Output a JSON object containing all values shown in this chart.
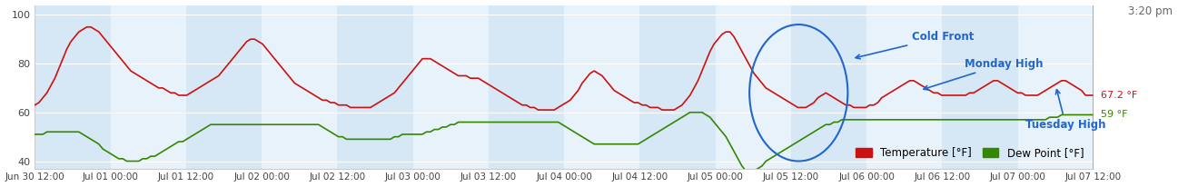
{
  "title": "3:20 pm",
  "x_tick_labels": [
    "Jun 30 12:00",
    "Jul 01 00:00",
    "Jul 01 12:00",
    "Jul 02 00:00",
    "Jul 02 12:00",
    "Jul 03 00:00",
    "Jul 03 12:00",
    "Jul 04 00:00",
    "Jul 04 12:00",
    "Jul 05 00:00",
    "Jul 05 12:00",
    "Jul 06 00:00",
    "Jul 06 12:00",
    "Jul 07 00:00",
    "Jul 07 12:00"
  ],
  "ylim": [
    37,
    104
  ],
  "yticks": [
    40,
    60,
    80,
    100
  ],
  "bg_color": "#ffffff",
  "band_dark": "#d6e8f5",
  "band_light": "#e8f2fa",
  "grid_color": "#ffffff",
  "temp_color": "#cc1111",
  "dew_color": "#338800",
  "annotation_color": "#2266cc",
  "current_line_color": "#cc8833",
  "label_67": "67.2 °F",
  "label_59": "59 °F",
  "annotation_cold_front": "Cold Front",
  "annotation_monday_high": "Monday High",
  "annotation_tuesday_high": "Tuesday High",
  "temp_data": [
    63,
    64,
    66,
    68,
    71,
    74,
    78,
    82,
    86,
    89,
    91,
    93,
    94,
    95,
    95,
    94,
    93,
    91,
    89,
    87,
    85,
    83,
    81,
    79,
    77,
    76,
    75,
    74,
    73,
    72,
    71,
    70,
    70,
    69,
    68,
    68,
    67,
    67,
    67,
    68,
    69,
    70,
    71,
    72,
    73,
    74,
    75,
    77,
    79,
    81,
    83,
    85,
    87,
    89,
    90,
    90,
    89,
    88,
    86,
    84,
    82,
    80,
    78,
    76,
    74,
    72,
    71,
    70,
    69,
    68,
    67,
    66,
    65,
    65,
    64,
    64,
    63,
    63,
    63,
    62,
    62,
    62,
    62,
    62,
    62,
    63,
    64,
    65,
    66,
    67,
    68,
    70,
    72,
    74,
    76,
    78,
    80,
    82,
    82,
    82,
    81,
    80,
    79,
    78,
    77,
    76,
    75,
    75,
    75,
    74,
    74,
    74,
    73,
    72,
    71,
    70,
    69,
    68,
    67,
    66,
    65,
    64,
    63,
    63,
    62,
    62,
    61,
    61,
    61,
    61,
    61,
    62,
    63,
    64,
    65,
    67,
    69,
    72,
    74,
    76,
    77,
    76,
    75,
    73,
    71,
    69,
    68,
    67,
    66,
    65,
    64,
    64,
    63,
    63,
    62,
    62,
    62,
    61,
    61,
    61,
    61,
    62,
    63,
    65,
    67,
    70,
    73,
    77,
    81,
    85,
    88,
    90,
    92,
    93,
    93,
    91,
    88,
    85,
    82,
    79,
    76,
    74,
    72,
    70,
    69,
    68,
    67,
    66,
    65,
    64,
    63,
    62,
    62,
    62,
    63,
    64,
    66,
    67,
    68,
    67,
    66,
    65,
    64,
    63,
    63,
    62,
    62,
    62,
    62,
    63,
    63,
    64,
    66,
    67,
    68,
    69,
    70,
    71,
    72,
    73,
    73,
    72,
    71,
    70,
    69,
    68,
    68,
    67,
    67,
    67,
    67,
    67,
    67,
    67,
    68,
    68,
    69,
    70,
    71,
    72,
    73,
    73,
    72,
    71,
    70,
    69,
    68,
    68,
    67,
    67,
    67,
    67,
    68,
    69,
    70,
    71,
    72,
    73,
    73,
    72,
    71,
    70,
    69,
    67,
    67,
    67
  ],
  "dew_data": [
    51,
    51,
    51,
    52,
    52,
    52,
    52,
    52,
    52,
    52,
    52,
    52,
    51,
    50,
    49,
    48,
    47,
    45,
    44,
    43,
    42,
    41,
    41,
    40,
    40,
    40,
    40,
    41,
    41,
    42,
    42,
    43,
    44,
    45,
    46,
    47,
    48,
    48,
    49,
    50,
    51,
    52,
    53,
    54,
    55,
    55,
    55,
    55,
    55,
    55,
    55,
    55,
    55,
    55,
    55,
    55,
    55,
    55,
    55,
    55,
    55,
    55,
    55,
    55,
    55,
    55,
    55,
    55,
    55,
    55,
    55,
    55,
    54,
    53,
    52,
    51,
    50,
    50,
    49,
    49,
    49,
    49,
    49,
    49,
    49,
    49,
    49,
    49,
    49,
    49,
    50,
    50,
    51,
    51,
    51,
    51,
    51,
    51,
    52,
    52,
    53,
    53,
    54,
    54,
    55,
    55,
    56,
    56,
    56,
    56,
    56,
    56,
    56,
    56,
    56,
    56,
    56,
    56,
    56,
    56,
    56,
    56,
    56,
    56,
    56,
    56,
    56,
    56,
    56,
    56,
    56,
    56,
    55,
    54,
    53,
    52,
    51,
    50,
    49,
    48,
    47,
    47,
    47,
    47,
    47,
    47,
    47,
    47,
    47,
    47,
    47,
    47,
    48,
    49,
    50,
    51,
    52,
    53,
    54,
    55,
    56,
    57,
    58,
    59,
    60,
    60,
    60,
    60,
    59,
    58,
    56,
    54,
    52,
    50,
    47,
    44,
    41,
    38,
    36,
    35,
    36,
    37,
    38,
    40,
    41,
    42,
    43,
    44,
    45,
    46,
    47,
    48,
    49,
    50,
    51,
    52,
    53,
    54,
    55,
    55,
    56,
    56,
    57,
    57,
    57,
    57,
    57,
    57,
    57,
    57,
    57,
    57,
    57,
    57,
    57,
    57,
    57,
    57,
    57,
    57,
    57,
    57,
    57,
    57,
    57,
    57,
    57,
    57,
    57,
    57,
    57,
    57,
    57,
    57,
    57,
    57,
    57,
    57,
    57,
    57,
    57,
    57,
    57,
    57,
    57,
    57,
    57,
    57,
    57,
    57,
    57,
    57,
    57,
    57,
    58,
    58,
    58,
    59,
    59,
    59,
    59,
    59,
    59,
    59,
    59,
    59
  ]
}
